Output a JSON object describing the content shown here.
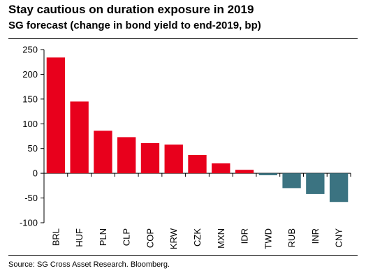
{
  "title": "Stay cautious on duration exposure in 2019",
  "subtitle": "SG forecast (change in bond yield to end-2019, bp)",
  "source": "Source: SG Cross Asset Research. Bloomberg.",
  "colors": {
    "positive": "#e8001c",
    "negative": "#3b7381",
    "axis": "#000000"
  },
  "chart_data": {
    "type": "bar",
    "title": "Stay cautious on duration exposure in 2019",
    "subtitle": "SG forecast (change in bond yield to end-2019, bp)",
    "categories": [
      "BRL",
      "HUF",
      "PLN",
      "CLP",
      "COP",
      "KRW",
      "CZK",
      "MXN",
      "IDR",
      "TWD",
      "RUB",
      "INR",
      "CNY"
    ],
    "values": [
      234,
      145,
      86,
      73,
      61,
      58,
      37,
      20,
      7,
      -4,
      -30,
      -42,
      -58
    ],
    "ylim": [
      -100,
      250
    ],
    "yticks": [
      -100,
      -50,
      0,
      50,
      100,
      150,
      200,
      250
    ],
    "xlabel": "",
    "ylabel": "",
    "grid": false
  }
}
